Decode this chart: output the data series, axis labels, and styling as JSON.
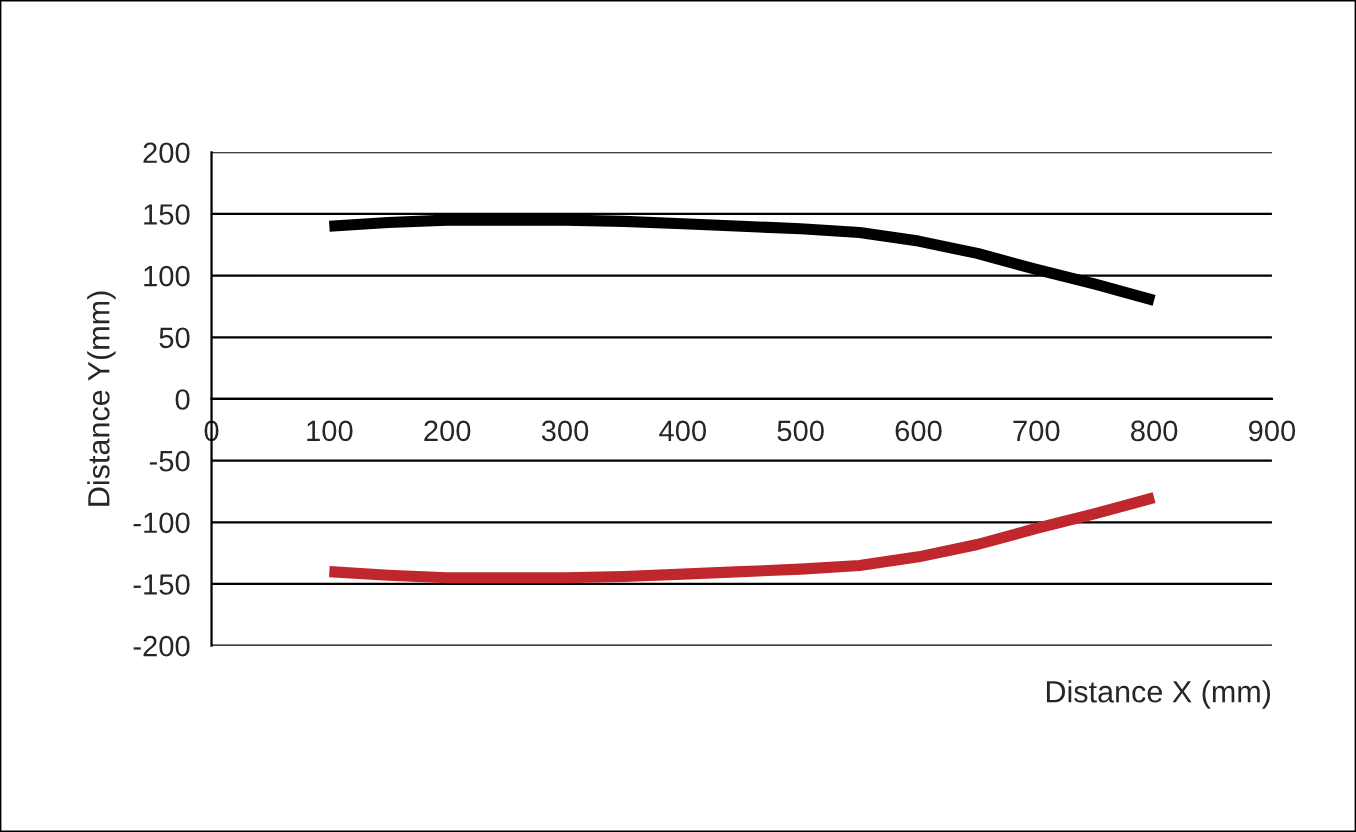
{
  "chart_data": {
    "type": "line",
    "xlabel": "Distance X (mm)",
    "ylabel": "Distance Y(mm)",
    "x": [
      100,
      150,
      200,
      250,
      300,
      350,
      400,
      450,
      500,
      550,
      600,
      650,
      700,
      750,
      800
    ],
    "series": [
      {
        "color": "#000000",
        "values": [
          140,
          143,
          145,
          145,
          145,
          144,
          142,
          140,
          138,
          135,
          128,
          118,
          105,
          93,
          80
        ]
      },
      {
        "color": "#c0272d",
        "values": [
          -140,
          -143,
          -145,
          -145,
          -145,
          -144,
          -142,
          -140,
          -138,
          -135,
          -128,
          -118,
          -105,
          -93,
          -80
        ]
      }
    ],
    "xlim": [
      0,
      900
    ],
    "xticks": [
      0,
      100,
      200,
      300,
      400,
      500,
      600,
      700,
      800,
      900
    ],
    "ylim": [
      -200,
      200
    ],
    "yticks": [
      -200,
      -150,
      -100,
      -50,
      0,
      50,
      100,
      150,
      200
    ],
    "grid": "y",
    "legend": false,
    "marker": "none",
    "line_style": "solid"
  }
}
